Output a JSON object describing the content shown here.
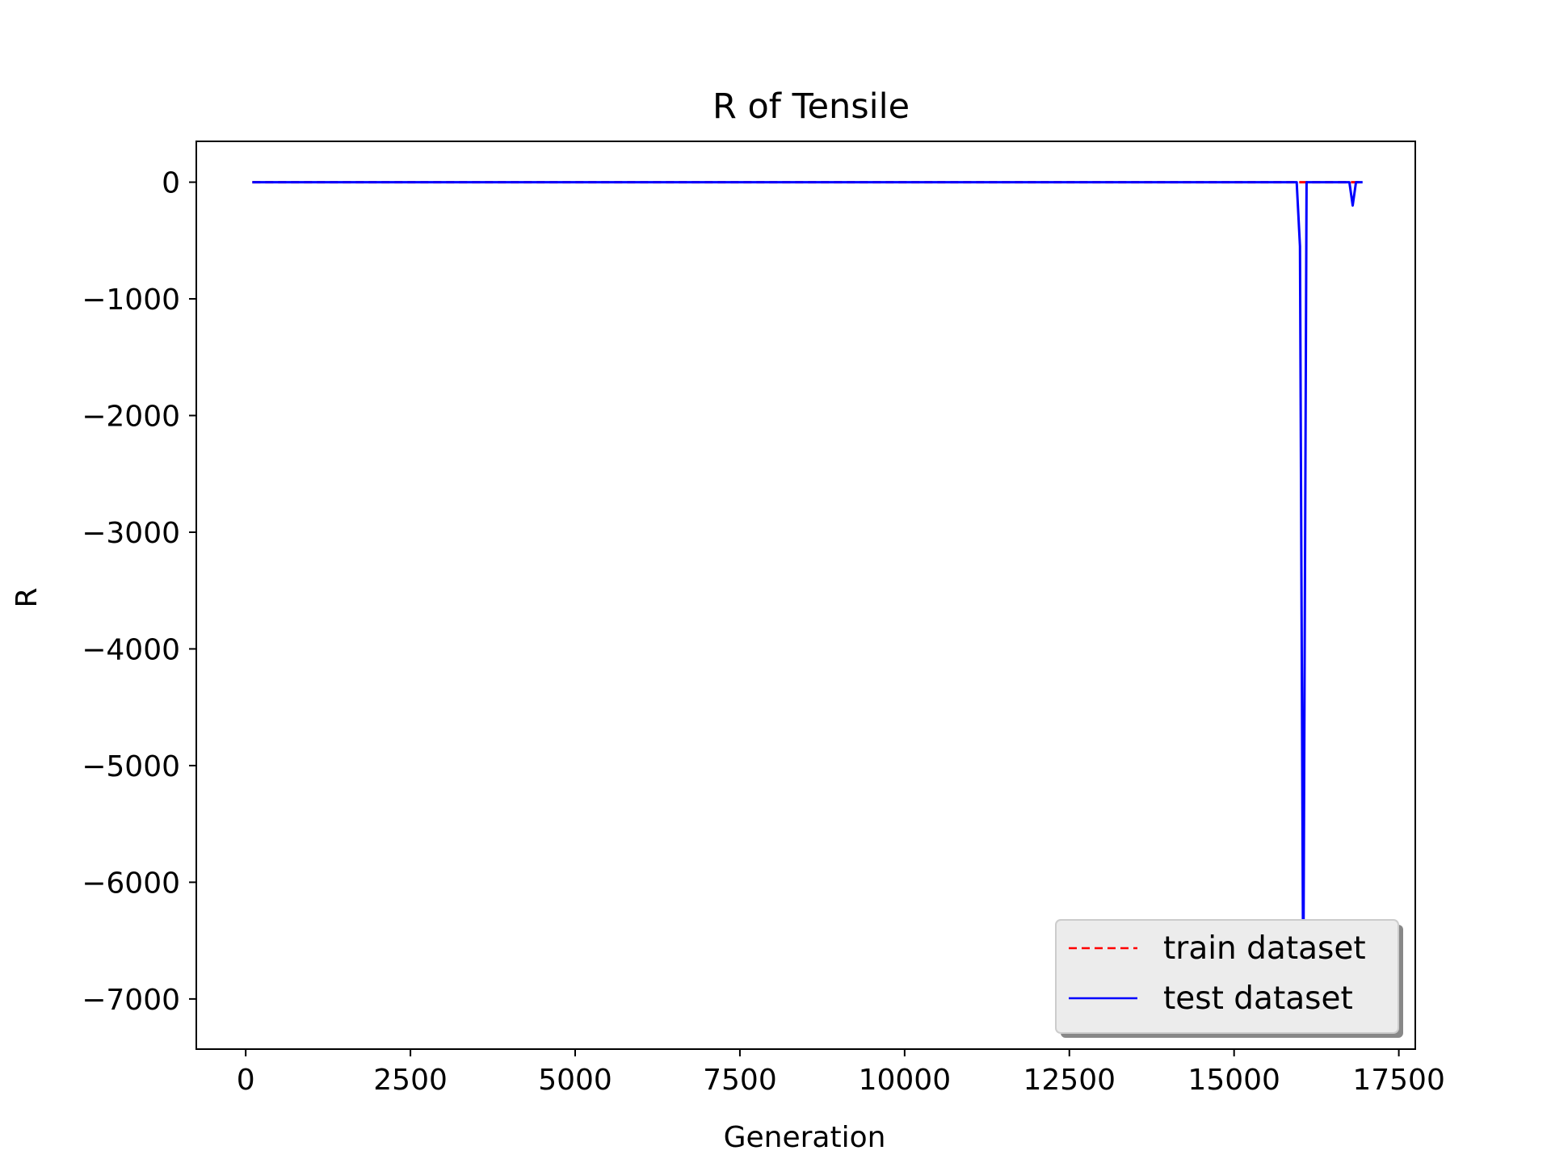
{
  "chart_data": {
    "type": "line",
    "title": "R of Tensile",
    "xlabel": "Generation",
    "ylabel": "R",
    "xlim": [
      -750,
      17750
    ],
    "ylim": [
      -7430,
      350
    ],
    "xticks": [
      0,
      2500,
      5000,
      7500,
      10000,
      12500,
      15000,
      17500
    ],
    "xtick_labels": [
      "0",
      "2500",
      "5000",
      "7500",
      "10000",
      "12500",
      "15000",
      "17500"
    ],
    "yticks": [
      0,
      -1000,
      -2000,
      -3000,
      -4000,
      -5000,
      -6000,
      -7000
    ],
    "ytick_labels": [
      "0",
      "−1000",
      "−2000",
      "−3000",
      "−4000",
      "−5000",
      "−6000",
      "−7000"
    ],
    "grid": false,
    "legend_position": "lower-right",
    "series": [
      {
        "name": "train dataset",
        "color": "#ff0000",
        "style": "dashed",
        "x": [
          100,
          15950,
          16950
        ],
        "y": [
          0,
          0,
          0
        ]
      },
      {
        "name": "test dataset",
        "color": "#0000ff",
        "style": "solid",
        "x": [
          100,
          15950,
          16000,
          16050,
          16100,
          16200,
          16700,
          16750,
          16800,
          16850,
          16950
        ],
        "y": [
          0,
          0,
          -550,
          -7000,
          0,
          0,
          0,
          0,
          -200,
          0,
          0
        ]
      }
    ]
  }
}
